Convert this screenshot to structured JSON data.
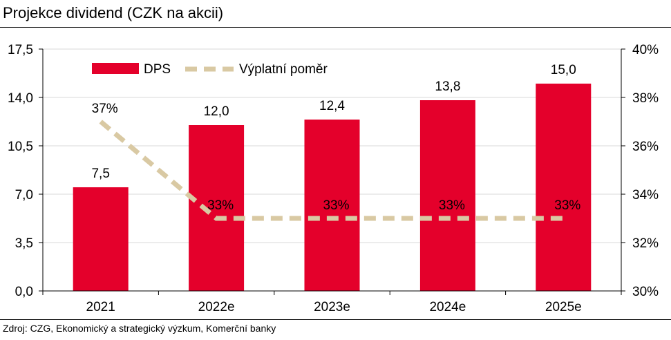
{
  "title": "Projekce dividend (CZK na akcii)",
  "source": "Zdroj: CZG, Ekonomický a strategický výzkum, Komerční banky",
  "colors": {
    "bar": "#e4002b",
    "line": "#d9c9a3",
    "grid": "#d9d9d9",
    "axis": "#000000"
  },
  "chart_data": {
    "type": "bar",
    "categories": [
      "2021",
      "2022e",
      "2023e",
      "2024e",
      "2025e"
    ],
    "series": [
      {
        "name": "DPS",
        "type": "bar",
        "axis": "left",
        "values": [
          7.5,
          12.0,
          12.4,
          13.8,
          15.0
        ],
        "labels": [
          "7,5",
          "12,0",
          "12,4",
          "13,8",
          "15,0"
        ]
      },
      {
        "name": "Výplatní poměr",
        "type": "line",
        "axis": "right",
        "style": "dashed",
        "values": [
          37,
          33,
          33,
          33,
          33
        ],
        "labels": [
          "37%",
          "33%",
          "33%",
          "33%",
          "33%"
        ]
      }
    ],
    "y_left": {
      "min": 0,
      "max": 17.5,
      "ticks": [
        "0,0",
        "3,5",
        "7,0",
        "10,5",
        "14,0",
        "17,5"
      ]
    },
    "y_right": {
      "min": 30,
      "max": 40,
      "ticks": [
        "30%",
        "32%",
        "34%",
        "36%",
        "38%",
        "40%"
      ]
    },
    "grid": true,
    "legend": "top-left"
  }
}
